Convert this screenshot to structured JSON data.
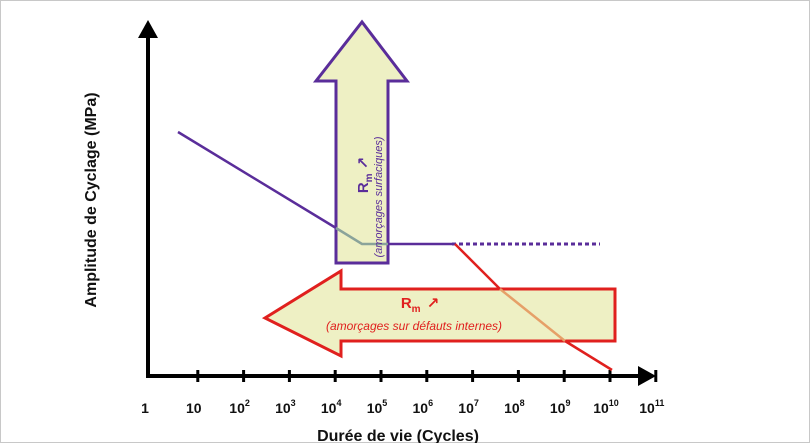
{
  "axes": {
    "ylabel": "Amplitude de Cyclage (MPa)",
    "xlabel": "Durée de vie (Cycles)",
    "xticks": [
      {
        "base": "1",
        "exp": ""
      },
      {
        "base": "10",
        "exp": ""
      },
      {
        "base": "10",
        "exp": "2"
      },
      {
        "base": "10",
        "exp": "3"
      },
      {
        "base": "10",
        "exp": "4"
      },
      {
        "base": "10",
        "exp": "5"
      },
      {
        "base": "10",
        "exp": "6"
      },
      {
        "base": "10",
        "exp": "7"
      },
      {
        "base": "10",
        "exp": "8"
      },
      {
        "base": "10",
        "exp": "9"
      },
      {
        "base": "10",
        "exp": "10"
      },
      {
        "base": "10",
        "exp": "11"
      }
    ]
  },
  "surface_arrow": {
    "rm_label": "R",
    "rm_sub": "m",
    "rm_arrow": "↗",
    "note": "(amorçages surfaciques)",
    "outline_color": "#5a2d9a",
    "fill_color": "#eef0c4"
  },
  "internal_arrow": {
    "rm_label": "R",
    "rm_sub": "m",
    "rm_arrow": "↗",
    "note": "(amorçages sur défauts internes)",
    "outline_color": "#e0201e",
    "fill_color": "#eef0c4"
  },
  "colors": {
    "surface_curve": "#5a2d9a",
    "transition_curve": "#8aa39a",
    "internal_curve": "#e0201e",
    "overlap_curve": "#e6a068",
    "axis": "#000000"
  }
}
